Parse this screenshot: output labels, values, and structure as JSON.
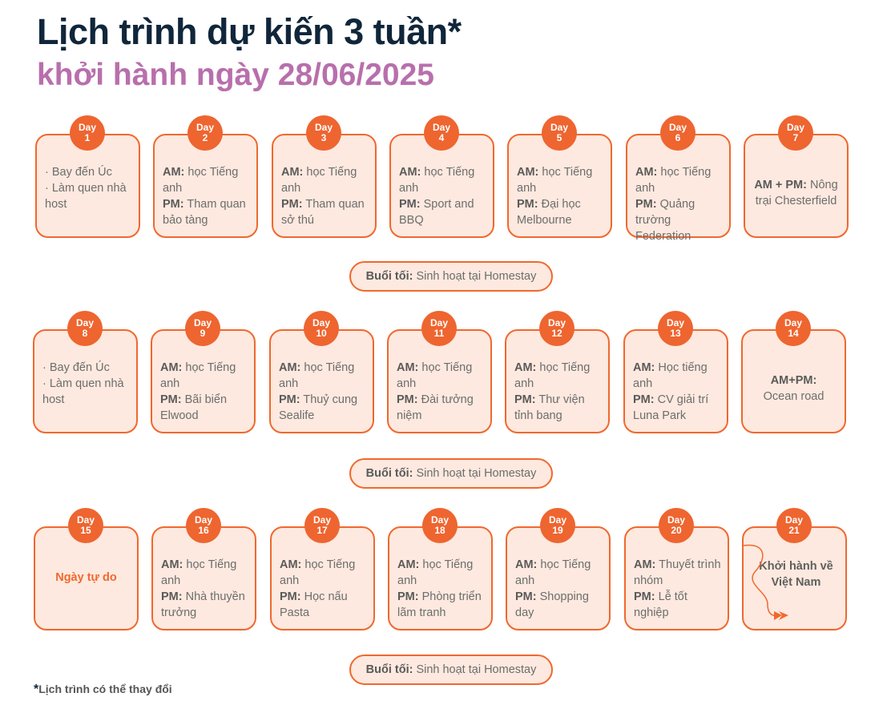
{
  "header": {
    "title": "Lịch trình dự kiến 3 tuần*",
    "subtitle": "khởi hành ngày 28/06/2025"
  },
  "day_label": "Day",
  "weeks": [
    {
      "evening": {
        "label": "Buổi tối:",
        "text": "Sinh hoạt tại Homestay"
      },
      "days": [
        {
          "day": "1",
          "type": "bullets",
          "lines": [
            {
              "b": "",
              "t": "· Bay đến Úc"
            },
            {
              "b": "",
              "t": "· Làm quen nhà host"
            }
          ]
        },
        {
          "day": "2",
          "type": "ampm",
          "lines": [
            {
              "b": "AM:",
              "t": "học Tiếng anh"
            },
            {
              "b": "PM:",
              "t": "Tham quan bảo tàng"
            }
          ]
        },
        {
          "day": "3",
          "type": "ampm",
          "lines": [
            {
              "b": "AM:",
              "t": "học Tiếng anh"
            },
            {
              "b": "PM:",
              "t": "Tham quan sở thú"
            }
          ]
        },
        {
          "day": "4",
          "type": "ampm",
          "lines": [
            {
              "b": "AM:",
              "t": "học Tiếng anh"
            },
            {
              "b": "PM:",
              "t": "Sport and BBQ"
            }
          ]
        },
        {
          "day": "5",
          "type": "ampm",
          "lines": [
            {
              "b": "AM:",
              "t": "học Tiếng anh"
            },
            {
              "b": "PM:",
              "t": "Đại học Melbourne"
            }
          ]
        },
        {
          "day": "6",
          "type": "ampm",
          "lines": [
            {
              "b": "AM:",
              "t": "học Tiếng anh"
            },
            {
              "b": "PM:",
              "t": "Quảng trường Federation"
            }
          ]
        },
        {
          "day": "7",
          "type": "combined",
          "lines": [
            {
              "b": "AM + PM:",
              "t": "Nông trại Chesterfield"
            }
          ]
        }
      ]
    },
    {
      "evening": {
        "label": "Buổi tối:",
        "text": "Sinh hoạt tại Homestay"
      },
      "days": [
        {
          "day": "8",
          "type": "bullets",
          "lines": [
            {
              "b": "",
              "t": "· Bay đến Úc"
            },
            {
              "b": "",
              "t": "· Làm quen nhà host"
            }
          ]
        },
        {
          "day": "9",
          "type": "ampm",
          "lines": [
            {
              "b": "AM:",
              "t": "học Tiếng anh"
            },
            {
              "b": "PM:",
              "t": "Bãi biển Elwood"
            }
          ]
        },
        {
          "day": "10",
          "type": "ampm",
          "lines": [
            {
              "b": "AM:",
              "t": "học Tiếng anh"
            },
            {
              "b": "PM:",
              "t": "Thuỷ cung Sealife"
            }
          ]
        },
        {
          "day": "11",
          "type": "ampm",
          "lines": [
            {
              "b": "AM:",
              "t": "học Tiếng anh"
            },
            {
              "b": "PM:",
              "t": "Đài tưởng niệm"
            }
          ]
        },
        {
          "day": "12",
          "type": "ampm",
          "lines": [
            {
              "b": "AM:",
              "t": "học Tiếng anh"
            },
            {
              "b": "PM:",
              "t": "Thư viện tỉnh bang"
            }
          ]
        },
        {
          "day": "13",
          "type": "ampm",
          "lines": [
            {
              "b": "AM:",
              "t": "Học tiếng anh"
            },
            {
              "b": "PM:",
              "t": "CV giải trí Luna Park"
            }
          ]
        },
        {
          "day": "14",
          "type": "combined_stack",
          "lines": [
            {
              "b": "AM+PM:",
              "t": "Ocean road"
            }
          ]
        }
      ]
    },
    {
      "evening": {
        "label": "Buổi tối:",
        "text": "Sinh hoạt tại Homestay"
      },
      "days": [
        {
          "day": "15",
          "type": "free",
          "lines": [
            {
              "b": "",
              "t": "Ngày tự do"
            }
          ]
        },
        {
          "day": "16",
          "type": "ampm",
          "lines": [
            {
              "b": "AM:",
              "t": "học Tiếng anh"
            },
            {
              "b": "PM:",
              "t": "Nhà thuyền trưởng"
            }
          ]
        },
        {
          "day": "17",
          "type": "ampm",
          "lines": [
            {
              "b": "AM:",
              "t": "học Tiếng anh"
            },
            {
              "b": "PM:",
              "t": "Học nấu Pasta"
            }
          ]
        },
        {
          "day": "18",
          "type": "ampm",
          "lines": [
            {
              "b": "AM:",
              "t": "học Tiếng anh"
            },
            {
              "b": "PM:",
              "t": "Phòng triển lãm tranh"
            }
          ]
        },
        {
          "day": "19",
          "type": "ampm",
          "lines": [
            {
              "b": "AM:",
              "t": "học Tiếng anh"
            },
            {
              "b": "PM:",
              "t": "Shopping day"
            }
          ]
        },
        {
          "day": "20",
          "type": "ampm",
          "lines": [
            {
              "b": "AM:",
              "t": "Thuyết trình nhóm"
            },
            {
              "b": "PM:",
              "t": "Lễ tốt nghiệp"
            }
          ]
        },
        {
          "day": "21",
          "type": "departure",
          "icon": "flight-route-arrow-icon",
          "lines": [
            {
              "b": "",
              "t": "Khởi hành về Việt Nam"
            }
          ]
        }
      ]
    }
  ],
  "footnote": {
    "asterisk": "*",
    "text": "Lịch trình có thể thay đổi"
  },
  "colors": {
    "accent": "#f0682e",
    "card_bg": "#fde9df",
    "title": "#10263a",
    "subtitle": "#b86fac"
  }
}
